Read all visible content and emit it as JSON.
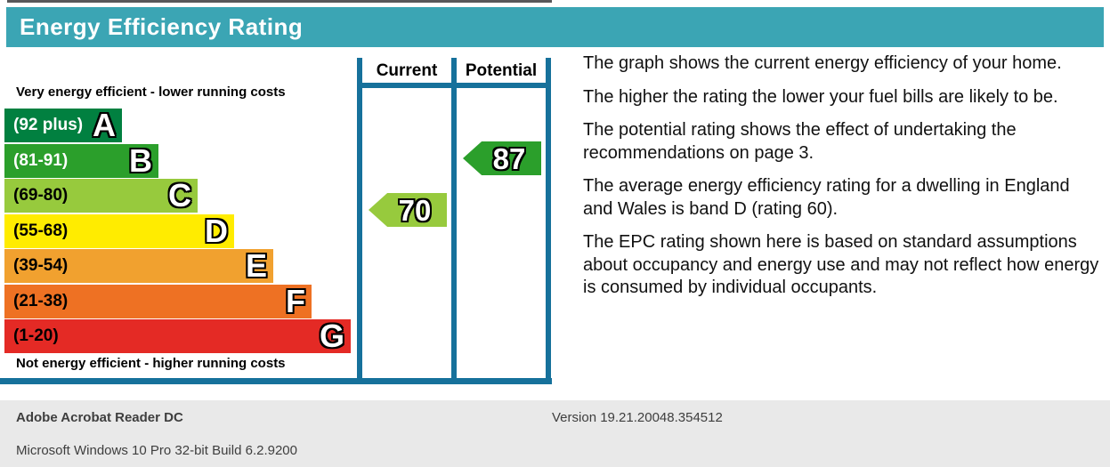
{
  "header": {
    "title": "Energy Efficiency Rating"
  },
  "chart_data": {
    "type": "bar",
    "chart_kind": "epc-energy-efficiency-rating",
    "title": "Energy Efficiency Rating",
    "top_caption": "Very energy efficient - lower running costs",
    "bottom_caption": "Not energy efficient - higher running costs",
    "column_headers": {
      "current": "Current",
      "potential": "Potential"
    },
    "bands": [
      {
        "letter": "A",
        "range_label": "(92 plus)",
        "score_range": [
          92,
          100
        ],
        "color": "#018040",
        "range_text_color": "#ffffff"
      },
      {
        "letter": "B",
        "range_label": "(81-91)",
        "score_range": [
          81,
          91
        ],
        "color": "#2B9F2B",
        "range_text_color": "#ffffff"
      },
      {
        "letter": "C",
        "range_label": "(69-80)",
        "score_range": [
          69,
          80
        ],
        "color": "#97CA3D",
        "range_text_color": "#000000"
      },
      {
        "letter": "D",
        "range_label": "(55-68)",
        "score_range": [
          55,
          68
        ],
        "color": "#FFEC00",
        "range_text_color": "#000000"
      },
      {
        "letter": "E",
        "range_label": "(39-54)",
        "score_range": [
          39,
          54
        ],
        "color": "#F1A12F",
        "range_text_color": "#000000"
      },
      {
        "letter": "F",
        "range_label": "(21-38)",
        "score_range": [
          21,
          38
        ],
        "color": "#EE7123",
        "range_text_color": "#000000"
      },
      {
        "letter": "G",
        "range_label": "(1-20)",
        "score_range": [
          1,
          20
        ],
        "color": "#E42A25",
        "range_text_color": "#000000"
      }
    ],
    "current": {
      "value": 70,
      "band": "C",
      "color": "#97CA3D"
    },
    "potential": {
      "value": 87,
      "band": "B",
      "color": "#2B9F2B"
    }
  },
  "description": {
    "paragraphs": [
      "The graph shows the current energy efficiency of your home.",
      "The higher the rating the lower your fuel bills are likely to be.",
      "The potential rating shows the effect of undertaking the recommendations on page 3.",
      "The average energy efficiency rating for a dwelling in England and Wales is band D (rating 60).",
      "The EPC rating shown here is based on standard assumptions about occupancy and energy use and may not reflect how energy is consumed by individual occupants."
    ]
  },
  "statusbar": {
    "app_name": "Adobe Acrobat Reader DC",
    "version": "Version 19.21.20048.354512",
    "os": "Microsoft Windows 10 Pro 32-bit Build 6.2.9200"
  },
  "colors": {
    "header_bg": "#3BA5B4",
    "table_border": "#16719B",
    "status_bg": "#E9E9E9",
    "top_strip": "#58585a"
  }
}
